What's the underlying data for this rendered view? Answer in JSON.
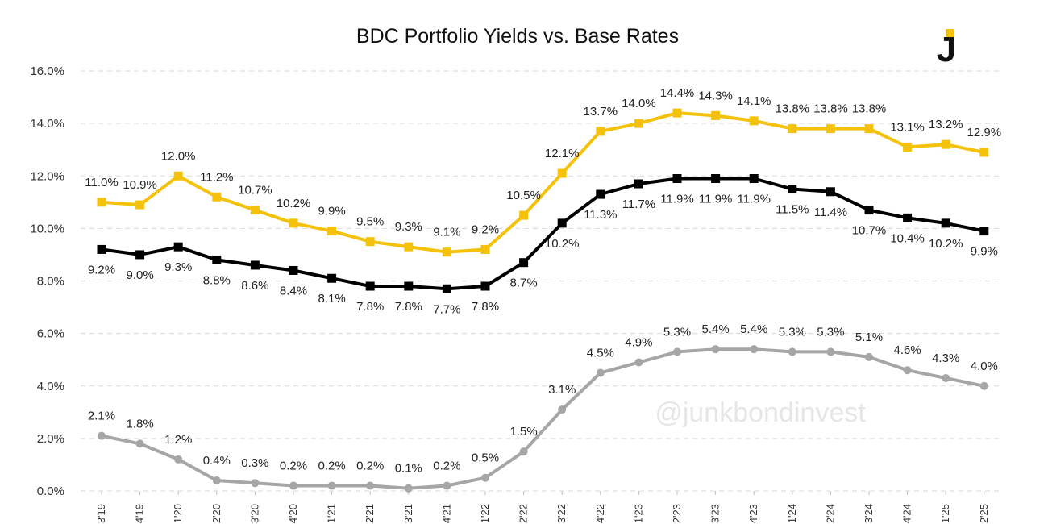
{
  "chart_data": {
    "type": "line",
    "title": "BDC Portfolio Yields vs. Base Rates",
    "xlabel": "",
    "ylabel": "",
    "ylim": [
      0,
      16
    ],
    "yticks": [
      "0.0%",
      "2.0%",
      "4.0%",
      "6.0%",
      "8.0%",
      "10.0%",
      "12.0%",
      "14.0%",
      "16.0%"
    ],
    "categories": [
      "3'19",
      "4'19",
      "1'20",
      "2'20",
      "3'20",
      "4'20",
      "1'21",
      "2'21",
      "3'21",
      "4'21",
      "1'22",
      "2'22",
      "3'22",
      "4'22",
      "1'23",
      "2'23",
      "3'23",
      "4'23",
      "1'24",
      "2'24",
      "3'24",
      "4'24",
      "1'25",
      "2'25"
    ],
    "grid": true,
    "legend": "none",
    "series": [
      {
        "color": "#F5C20B",
        "labelPosition": "above",
        "values": [
          11.0,
          10.9,
          12.0,
          11.2,
          10.7,
          10.2,
          9.9,
          9.5,
          9.3,
          9.1,
          9.2,
          10.5,
          12.1,
          13.7,
          14.0,
          14.4,
          14.3,
          14.1,
          13.8,
          13.8,
          13.8,
          13.1,
          13.2,
          12.9
        ],
        "labels": [
          "11.0%",
          "10.9%",
          "12.0%",
          "11.2%",
          "10.7%",
          "10.2%",
          "9.9%",
          "9.5%",
          "9.3%",
          "9.1%",
          "9.2%",
          "10.5%",
          "12.1%",
          "13.7%",
          "14.0%",
          "14.4%",
          "14.3%",
          "14.1%",
          "13.8%",
          "13.8%",
          "13.8%",
          "13.1%",
          "13.2%",
          "12.9%"
        ]
      },
      {
        "color": "#000000",
        "labelPosition": "below",
        "values": [
          9.2,
          9.0,
          9.3,
          8.8,
          8.6,
          8.4,
          8.1,
          7.8,
          7.8,
          7.7,
          7.8,
          8.7,
          10.2,
          11.3,
          11.7,
          11.9,
          11.9,
          11.9,
          11.5,
          11.4,
          10.7,
          10.4,
          10.2,
          9.9
        ],
        "labels": [
          "9.2%",
          "9.0%",
          "9.3%",
          "8.8%",
          "8.6%",
          "8.4%",
          "8.1%",
          "7.8%",
          "7.8%",
          "7.7%",
          "7.8%",
          "8.7%",
          "10.2%",
          "11.3%",
          "11.7%",
          "11.9%",
          "11.9%",
          "11.9%",
          "11.5%",
          "11.4%",
          "10.7%",
          "10.4%",
          "10.2%",
          "9.9%"
        ]
      },
      {
        "color": "#A6A6A6",
        "labelPosition": "above",
        "values": [
          2.1,
          1.8,
          1.2,
          0.4,
          0.3,
          0.2,
          0.2,
          0.2,
          0.1,
          0.2,
          0.5,
          1.5,
          3.1,
          4.5,
          4.9,
          5.3,
          5.4,
          5.4,
          5.3,
          5.3,
          5.1,
          4.6,
          4.3,
          4.0
        ],
        "labels": [
          "2.1%",
          "1.8%",
          "1.2%",
          "0.4%",
          "0.3%",
          "0.2%",
          "0.2%",
          "0.2%",
          "0.1%",
          "0.2%",
          "0.5%",
          "1.5%",
          "3.1%",
          "4.5%",
          "4.9%",
          "5.3%",
          "5.4%",
          "5.4%",
          "5.3%",
          "5.3%",
          "5.1%",
          "4.6%",
          "4.3%",
          "4.0%"
        ]
      }
    ]
  },
  "watermark": "@junkbondinvest",
  "logo": {
    "text": "J",
    "color": "#111111",
    "accent": "#F5C20B"
  }
}
